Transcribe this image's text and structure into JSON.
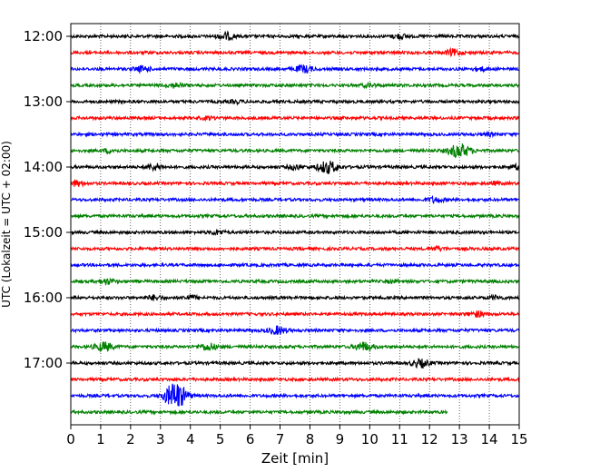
{
  "chart_data": {
    "type": "line",
    "title": "",
    "xlabel": "Zeit  [min]",
    "ylabel": "UTC (Lokalzeit = UTC + 02:00)",
    "xlim": [
      0,
      15
    ],
    "x_ticks": [
      "0",
      "1",
      "2",
      "3",
      "4",
      "5",
      "6",
      "7",
      "8",
      "9",
      "10",
      "11",
      "12",
      "13",
      "14",
      "15"
    ],
    "y_ticks": [
      "12:00",
      "13:00",
      "14:00",
      "15:00",
      "16:00",
      "17:00"
    ],
    "grid": "vertical dotted",
    "line_interval_min": 15,
    "colors": [
      "#000000",
      "#ff0000",
      "#0000ff",
      "#008000"
    ],
    "traces": [
      {
        "start": "12:00",
        "color": "#000000",
        "end_min": 15,
        "events": [
          {
            "t": 5.2,
            "amp": 0.8
          },
          {
            "t": 11.0,
            "amp": 0.5
          }
        ]
      },
      {
        "start": "12:15",
        "color": "#ff0000",
        "end_min": 15,
        "events": [
          {
            "t": 12.8,
            "amp": 0.7
          }
        ]
      },
      {
        "start": "12:30",
        "color": "#0000ff",
        "end_min": 15,
        "events": [
          {
            "t": 2.4,
            "amp": 0.6
          },
          {
            "t": 7.8,
            "amp": 0.8
          },
          {
            "t": 13.7,
            "amp": 0.4
          }
        ]
      },
      {
        "start": "12:45",
        "color": "#008000",
        "end_min": 15,
        "events": [
          {
            "t": 3.5,
            "amp": 0.5
          },
          {
            "t": 10.0,
            "amp": 0.4
          }
        ]
      },
      {
        "start": "13:00",
        "color": "#000000",
        "end_min": 15,
        "events": [
          {
            "t": 5.5,
            "amp": 0.3
          }
        ]
      },
      {
        "start": "13:15",
        "color": "#ff0000",
        "end_min": 15,
        "events": [
          {
            "t": 4.6,
            "amp": 0.3
          }
        ]
      },
      {
        "start": "13:30",
        "color": "#0000ff",
        "end_min": 15,
        "events": [
          {
            "t": 14.0,
            "amp": 0.3
          }
        ]
      },
      {
        "start": "13:45",
        "color": "#008000",
        "end_min": 15,
        "events": [
          {
            "t": 1.3,
            "amp": 0.4
          },
          {
            "t": 13.0,
            "amp": 1.6
          }
        ]
      },
      {
        "start": "14:00",
        "color": "#000000",
        "end_min": 15,
        "events": [
          {
            "t": 2.8,
            "amp": 0.7
          },
          {
            "t": 7.5,
            "amp": 0.5
          },
          {
            "t": 8.6,
            "amp": 1.4
          },
          {
            "t": 15.0,
            "amp": 0.5
          }
        ]
      },
      {
        "start": "14:15",
        "color": "#ff0000",
        "end_min": 15,
        "events": [
          {
            "t": 0.2,
            "amp": 0.6
          },
          {
            "t": 14.2,
            "amp": 0.3
          }
        ]
      },
      {
        "start": "14:30",
        "color": "#0000ff",
        "end_min": 15,
        "events": [
          {
            "t": 12.2,
            "amp": 0.6
          }
        ]
      },
      {
        "start": "14:45",
        "color": "#008000",
        "end_min": 15,
        "events": []
      },
      {
        "start": "15:00",
        "color": "#000000",
        "end_min": 15,
        "events": [
          {
            "t": 4.9,
            "amp": 0.5
          }
        ]
      },
      {
        "start": "15:15",
        "color": "#ff0000",
        "end_min": 15,
        "events": [
          {
            "t": 12.3,
            "amp": 0.4
          }
        ]
      },
      {
        "start": "15:30",
        "color": "#0000ff",
        "end_min": 15,
        "events": []
      },
      {
        "start": "15:45",
        "color": "#008000",
        "end_min": 15,
        "events": [
          {
            "t": 1.2,
            "amp": 0.6
          },
          {
            "t": 10.8,
            "amp": 0.3
          }
        ]
      },
      {
        "start": "16:00",
        "color": "#000000",
        "end_min": 15,
        "events": [
          {
            "t": 2.8,
            "amp": 0.5
          },
          {
            "t": 4.0,
            "amp": 0.5
          },
          {
            "t": 14.2,
            "amp": 0.4
          }
        ]
      },
      {
        "start": "16:15",
        "color": "#ff0000",
        "end_min": 15,
        "events": [
          {
            "t": 13.6,
            "amp": 0.6
          }
        ]
      },
      {
        "start": "16:30",
        "color": "#0000ff",
        "end_min": 15,
        "events": [
          {
            "t": 6.9,
            "amp": 0.9
          }
        ]
      },
      {
        "start": "16:45",
        "color": "#008000",
        "end_min": 15,
        "events": [
          {
            "t": 1.1,
            "amp": 1.0
          },
          {
            "t": 4.6,
            "amp": 0.8
          },
          {
            "t": 9.8,
            "amp": 1.0
          }
        ]
      },
      {
        "start": "17:00",
        "color": "#000000",
        "end_min": 15,
        "events": [
          {
            "t": 11.7,
            "amp": 0.9
          }
        ]
      },
      {
        "start": "17:15",
        "color": "#ff0000",
        "end_min": 15,
        "events": []
      },
      {
        "start": "17:30",
        "color": "#0000ff",
        "end_min": 15,
        "events": [
          {
            "t": 3.5,
            "amp": 3.2
          }
        ]
      },
      {
        "start": "17:45",
        "color": "#008000",
        "end_min": 12.6,
        "events": []
      }
    ]
  }
}
